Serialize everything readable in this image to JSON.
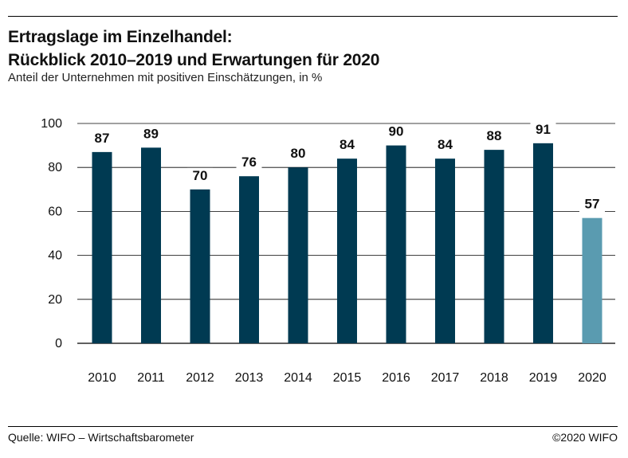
{
  "header": {
    "title_line1": "Ertragslage im Einzelhandel:",
    "title_line2": "Rückblick 2010–2019 und Erwartungen für 2020",
    "subtitle": "Anteil der Unternehmen mit positiven Einschätzungen, in %"
  },
  "footer": {
    "source": "Quelle: WIFO – Wirtschaftsbarometer",
    "copyright": "©2020 WIFO"
  },
  "chart_data": {
    "type": "bar",
    "categories": [
      "2010",
      "2011",
      "2012",
      "2013",
      "2014",
      "2015",
      "2016",
      "2017",
      "2018",
      "2019",
      "2020"
    ],
    "values": [
      87,
      89,
      70,
      76,
      80,
      84,
      90,
      84,
      88,
      91,
      57
    ],
    "ylim": [
      0,
      100
    ],
    "yticks": [
      0,
      20,
      40,
      60,
      80,
      100
    ],
    "grid": true,
    "colors": {
      "historic": "#003a52",
      "expectation": "#5a9bb0"
    },
    "expectation_categories": [
      "2020"
    ]
  }
}
